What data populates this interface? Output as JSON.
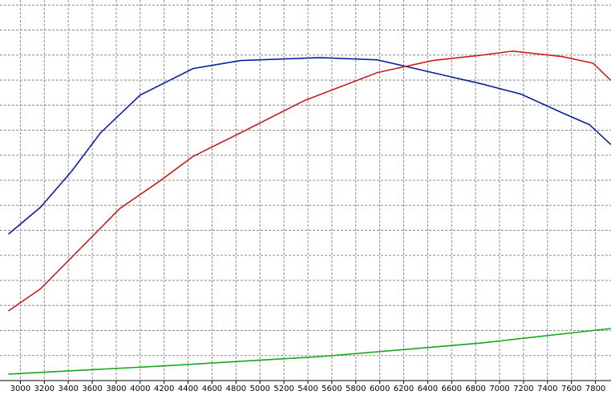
{
  "chart_data": {
    "type": "line",
    "xlim": [
      2830,
      7930
    ],
    "xticks": [
      3000,
      3200,
      3400,
      3600,
      3800,
      4000,
      4200,
      4400,
      4600,
      4800,
      5000,
      5200,
      5400,
      5600,
      5800,
      6000,
      6200,
      6400,
      6600,
      6800,
      7000,
      7200,
      7400,
      7600,
      7800
    ],
    "ylim": [
      0,
      15.2
    ],
    "yticks": [
      0,
      1,
      2,
      3,
      4,
      5,
      6,
      7,
      8,
      9,
      10,
      11,
      12,
      13,
      14,
      15
    ],
    "grid": true,
    "series": [
      {
        "color": "#0a1fa0",
        "x": [
          2900,
          3170,
          3430,
          3670,
          4000,
          4440,
          4840,
          5500,
          5980,
          6440,
          6850,
          7180,
          7520,
          7750,
          7930
        ],
        "values": [
          5.85,
          6.93,
          8.37,
          9.9,
          11.4,
          12.46,
          12.78,
          12.9,
          12.81,
          12.3,
          11.85,
          11.44,
          10.7,
          10.22,
          9.42
        ]
      },
      {
        "color": "#c81e1e",
        "x": [
          2900,
          3170,
          3500,
          3830,
          4170,
          4440,
          4840,
          5370,
          5980,
          6440,
          6850,
          7110,
          7520,
          7780,
          7930
        ],
        "values": [
          2.78,
          3.67,
          5.27,
          6.87,
          7.99,
          8.95,
          9.9,
          11.18,
          12.3,
          12.78,
          13.0,
          13.16,
          12.94,
          12.68,
          11.98
        ]
      },
      {
        "color": "#1aa51a",
        "x": [
          2900,
          4170,
          5510,
          6850,
          7930
        ],
        "values": [
          0.26,
          0.58,
          0.96,
          1.5,
          2.08
        ]
      }
    ]
  }
}
